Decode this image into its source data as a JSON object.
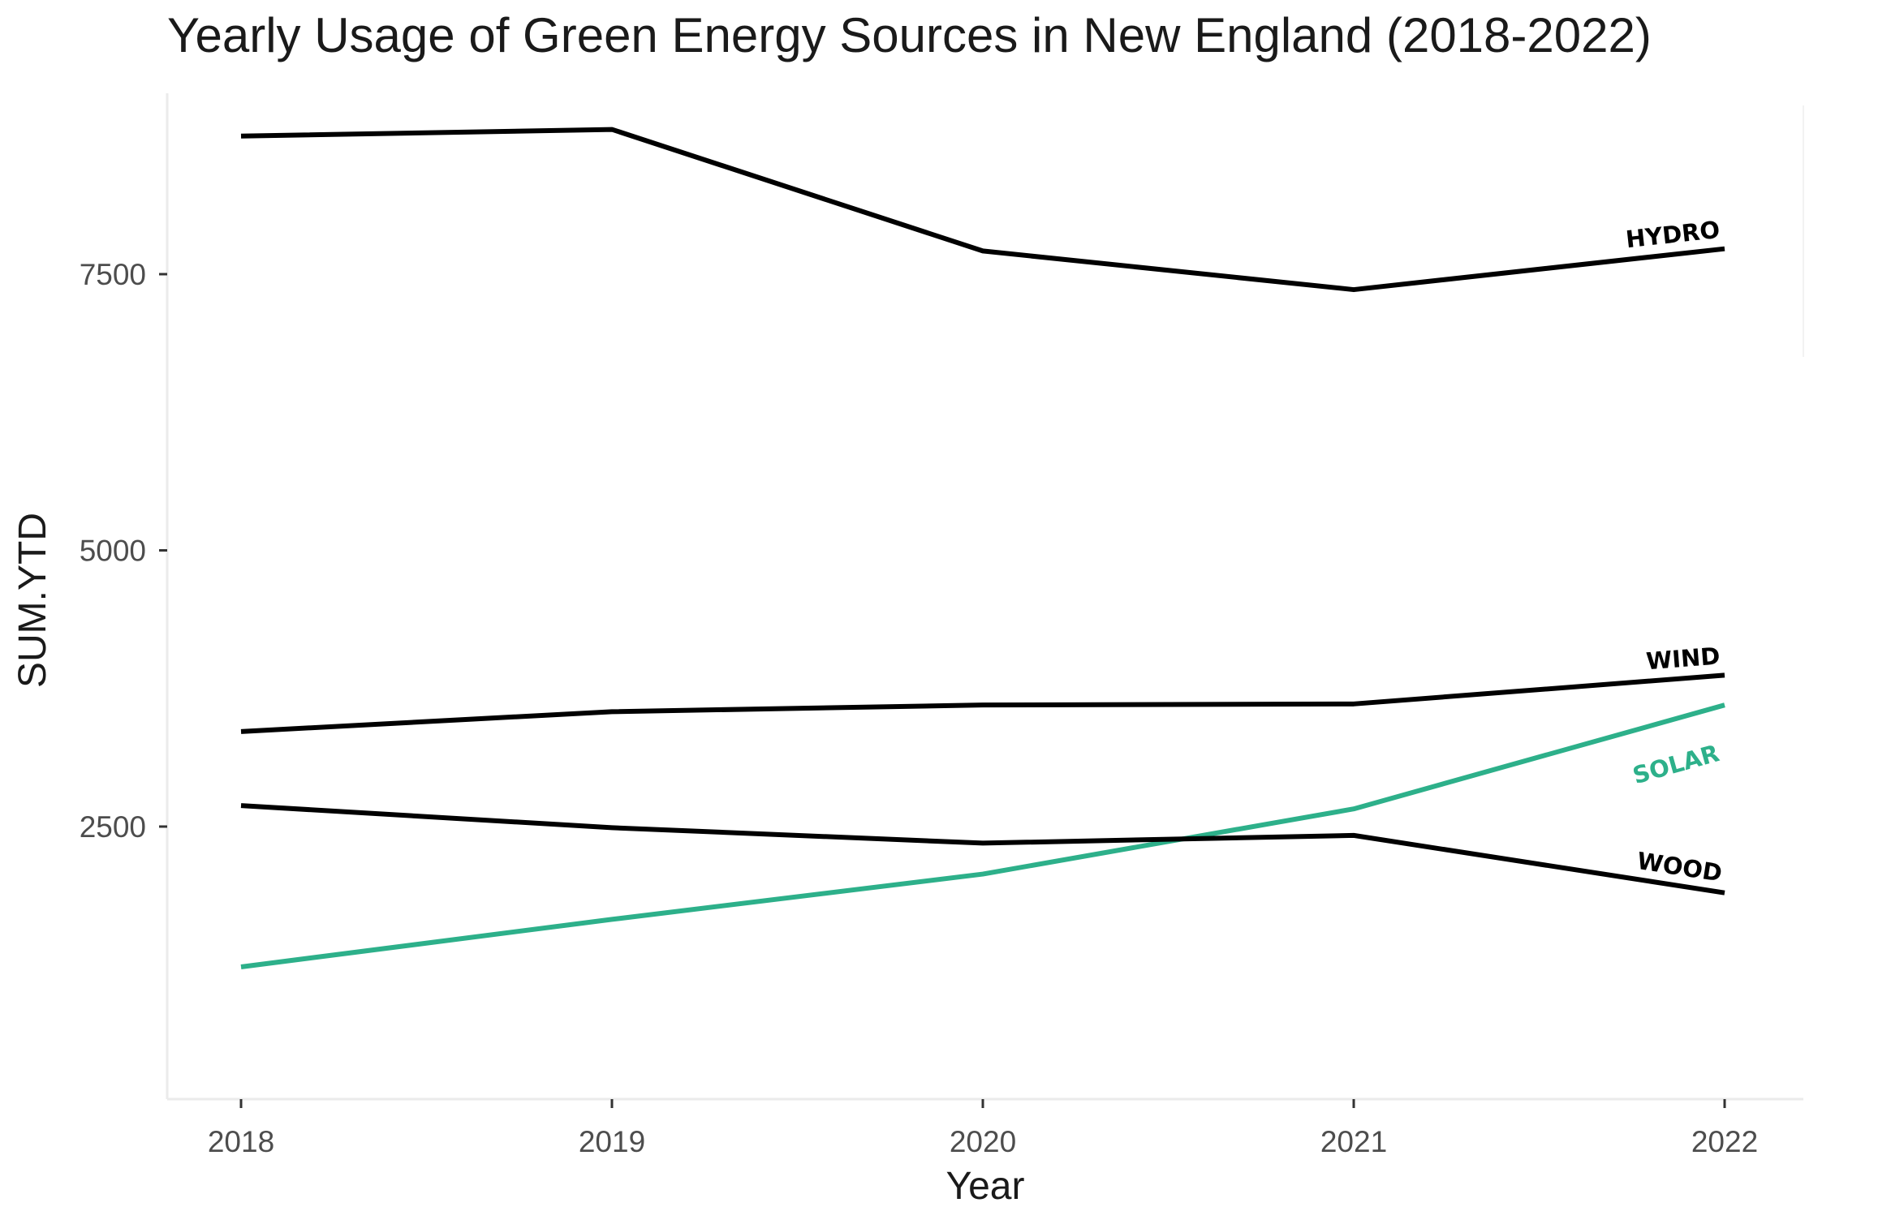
{
  "chart_data": {
    "type": "line",
    "title": "Yearly Usage of Green Energy Sources in New England (2018-2022)",
    "xlabel": "Year",
    "ylabel": "SUM.YTD",
    "x": [
      2018,
      2019,
      2020,
      2021,
      2022
    ],
    "x_ticks": [
      "2018",
      "2019",
      "2020",
      "2021",
      "2022"
    ],
    "y_ticks": [
      "2500",
      "5000",
      "7500"
    ],
    "xlim": [
      2017.8,
      2022.2
    ],
    "ylim": [
      200,
      9200
    ],
    "grid": false,
    "legend": "none (direct labels at line ends)",
    "series": [
      {
        "name": "HYDRO",
        "color": "#000000",
        "values": [
          8750,
          8810,
          7710,
          7360,
          7730
        ]
      },
      {
        "name": "WIND",
        "color": "#000000",
        "values": [
          3360,
          3540,
          3600,
          3610,
          3870
        ]
      },
      {
        "name": "SOLAR",
        "color": "#2db08a",
        "values": [
          1230,
          1660,
          2070,
          2660,
          3600
        ]
      },
      {
        "name": "WOOD",
        "color": "#000000",
        "values": [
          2690,
          2490,
          2350,
          2420,
          1900
        ]
      }
    ]
  }
}
